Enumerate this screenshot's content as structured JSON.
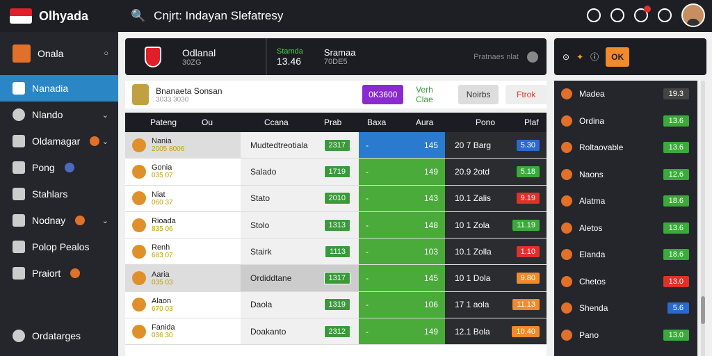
{
  "app": {
    "title": "Olhyada",
    "search_text": "Cnjrt: Indayan Slefatresy"
  },
  "sidebar": {
    "items": [
      {
        "label": "Onala"
      },
      {
        "label": "Nanadia"
      },
      {
        "label": "Nlando"
      },
      {
        "label": "Oldamagar"
      },
      {
        "label": "Pong"
      },
      {
        "label": "Stahlars"
      },
      {
        "label": "Nodnay"
      },
      {
        "label": "Polop Pealos"
      },
      {
        "label": "Praiort"
      }
    ],
    "footer_label": "Ordatarges"
  },
  "header_panel": {
    "title": "Odlanal",
    "sub": "30ZG",
    "stat_label": "Stamda",
    "stat_value": "13.46",
    "mid_label": "Sramaa",
    "mid_sub": "70DE5",
    "right_label": "Pratnaes nlat"
  },
  "subbar": {
    "title": "Bnanaeta Sonsan",
    "sub": "3033 3030",
    "btn1": "0K3600",
    "btn2": "Verh Clae",
    "btn3": "Noirbs",
    "btn4": "Ftrok"
  },
  "table": {
    "headers": [
      "Pateng",
      "Ou",
      "Ccana",
      "Prab",
      "Baxa",
      "Aura",
      "Pono",
      "Plaf"
    ],
    "rows": [
      {
        "team": "Nania",
        "score": "2005 8006",
        "match": "Mudtedtreotiala",
        "g": "2317",
        "a": "145",
        "d": "20 7 Barg",
        "o": "5.30"
      },
      {
        "team": "Gonia",
        "score": "035 07",
        "match": "Salado",
        "g": "1719",
        "a": "149",
        "d": "20.9 2otd",
        "o": "5.18"
      },
      {
        "team": "Niat",
        "score": "060 37",
        "match": "Stato",
        "g": "2010",
        "a": "143",
        "d": "10.1 Zalis",
        "o": "9.19"
      },
      {
        "team": "Rioada",
        "score": "835 06",
        "match": "Stolo",
        "g": "1313",
        "a": "148",
        "d": "10 1 Zola",
        "o": "11.19"
      },
      {
        "team": "Renh",
        "score": "683 07",
        "match": "Stairk",
        "g": "1113",
        "a": "103",
        "d": "10.1 Zolla",
        "o": "1.10"
      },
      {
        "team": "Aaria",
        "score": "035 03",
        "match": "Ordiddtane",
        "g": "1317",
        "a": "145",
        "d": "10 1 Dola",
        "o": "9.80"
      },
      {
        "team": "Alaon",
        "score": "670 03",
        "match": "Daola",
        "g": "1319",
        "a": "106",
        "d": "17 1 aola",
        "o": "11.13"
      },
      {
        "team": "Fanida",
        "score": "036 30",
        "match": "Doakanto",
        "g": "2312",
        "a": "149",
        "d": "12.1 Bola",
        "o": "10.40"
      }
    ]
  },
  "right_list": [
    {
      "label": "Madea",
      "value": "19.3"
    },
    {
      "label": "Ordina",
      "value": "13.6"
    },
    {
      "label": "Roltaovable",
      "value": "13.6"
    },
    {
      "label": "Naons",
      "value": "12.6"
    },
    {
      "label": "Alatma",
      "value": "18.6"
    },
    {
      "label": "Aletos",
      "value": "13.6"
    },
    {
      "label": "Elanda",
      "value": "18.6"
    },
    {
      "label": "Chetos",
      "value": "13.0"
    },
    {
      "label": "Shenda",
      "value": "5.6"
    },
    {
      "label": "Pano",
      "value": "13.0"
    }
  ]
}
